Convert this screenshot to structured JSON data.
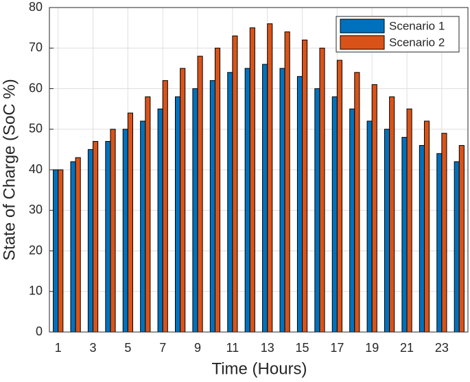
{
  "chart_data": {
    "type": "bar",
    "xlabel": "Time (Hours)",
    "ylabel": "State of Charge (SoC %)",
    "x": [
      1,
      2,
      3,
      4,
      5,
      6,
      7,
      8,
      9,
      10,
      11,
      12,
      13,
      14,
      15,
      16,
      17,
      18,
      19,
      20,
      21,
      22,
      23,
      24
    ],
    "series": [
      {
        "name": "Scenario 1",
        "color": "#0072bd",
        "values": [
          40,
          42,
          45,
          47,
          50,
          52,
          55,
          58,
          60,
          62,
          64,
          65,
          66,
          65,
          63,
          60,
          58,
          55,
          52,
          50,
          48,
          46,
          44,
          42
        ]
      },
      {
        "name": "Scenario 2",
        "color": "#d95319",
        "values": [
          40,
          43,
          47,
          50,
          54,
          58,
          62,
          65,
          68,
          70,
          73,
          75,
          76,
          74,
          72,
          70,
          67,
          64,
          61,
          58,
          55,
          52,
          49,
          46
        ]
      }
    ],
    "xlim": [
      0.5,
      24.5
    ],
    "xticks": [
      1,
      3,
      5,
      7,
      9,
      11,
      13,
      15,
      17,
      19,
      21,
      23
    ],
    "ylim": [
      0,
      80
    ],
    "yticks": [
      0,
      10,
      20,
      30,
      40,
      50,
      60,
      70,
      80
    ],
    "grid": true,
    "legend": "northeast"
  }
}
